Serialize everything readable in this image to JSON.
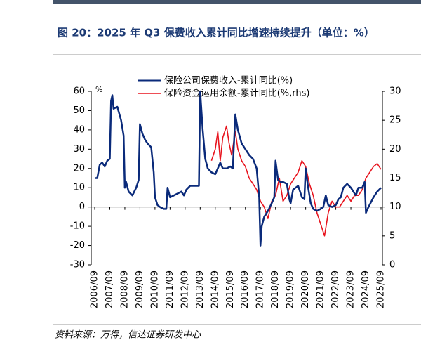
{
  "chart_data": {
    "type": "line",
    "title": "图 20：2025 年 Q3 保费收入累计同比增速持续提升（单位：%）",
    "source": "资料来源：万得，信达证券研发中心",
    "y_unit": "%",
    "xlim": [
      "2006/09",
      "2025/09"
    ],
    "xticks": [
      "2006/09",
      "2007/09",
      "2008/09",
      "2009/09",
      "2010/09",
      "2011/09",
      "2012/09",
      "2013/09",
      "2014/09",
      "2015/09",
      "2016/09",
      "2017/09",
      "2018/09",
      "2019/09",
      "2020/09",
      "2021/09",
      "2022/09",
      "2023/09",
      "2024/09",
      "2025/09"
    ],
    "ylim": [
      -30,
      60
    ],
    "yticks": [
      -30,
      -20,
      -10,
      0,
      10,
      20,
      30,
      40,
      50,
      60
    ],
    "y2lim": [
      0,
      30
    ],
    "y2ticks": [
      0,
      5,
      10,
      15,
      20,
      25,
      30
    ],
    "series": [
      {
        "name": "保险公司保费收入-累计同比(%)",
        "color": "#0a2a7a",
        "x": [
          "2006/09",
          "2006/11",
          "2007/01",
          "2007/03",
          "2007/05",
          "2007/07",
          "2007/09",
          "2007/10",
          "2007/11",
          "2007/12",
          "2008/03",
          "2008/06",
          "2008/08",
          "2008/09",
          "2008/10",
          "2008/12",
          "2009/03",
          "2009/06",
          "2009/08",
          "2009/09",
          "2009/11",
          "2010/01",
          "2010/03",
          "2010/06",
          "2010/08",
          "2010/09",
          "2010/11",
          "2011/01",
          "2011/04",
          "2011/06",
          "2011/07",
          "2011/09",
          "2011/12",
          "2012/03",
          "2012/06",
          "2012/08",
          "2012/10",
          "2013/01",
          "2013/06",
          "2013/08",
          "2013/09",
          "2013/11",
          "2014/01",
          "2014/03",
          "2014/06",
          "2014/09",
          "2014/11",
          "2015/01",
          "2015/03",
          "2015/06",
          "2015/09",
          "2015/11",
          "2016/01",
          "2016/03",
          "2016/06",
          "2016/09",
          "2016/12",
          "2017/03",
          "2017/06",
          "2017/08",
          "2017/09",
          "2017/10",
          "2017/12",
          "2018/03",
          "2018/06",
          "2018/08",
          "2018/09",
          "2018/11",
          "2019/01",
          "2019/03",
          "2019/06",
          "2019/08",
          "2019/09",
          "2019/11",
          "2020/01",
          "2020/03",
          "2020/06",
          "2020/08",
          "2020/09",
          "2020/11",
          "2021/01",
          "2021/03",
          "2021/06",
          "2021/09",
          "2021/11",
          "2022/01",
          "2022/03",
          "2022/06",
          "2022/09",
          "2022/11",
          "2023/01",
          "2023/03",
          "2023/06",
          "2023/09",
          "2023/11",
          "2024/01",
          "2024/03",
          "2024/06",
          "2024/08",
          "2024/09",
          "2024/11",
          "2025/03",
          "2025/06",
          "2025/09"
        ],
        "values": [
          15,
          15,
          22,
          23,
          21,
          24,
          25,
          55,
          58,
          51,
          52,
          45,
          37,
          10,
          13,
          8,
          6,
          10,
          14,
          43,
          38,
          35,
          33,
          31,
          18,
          5,
          1,
          0,
          -1,
          -1,
          10,
          5,
          6,
          7,
          8,
          6,
          9,
          11,
          11,
          11,
          60,
          40,
          25,
          20,
          18,
          17,
          20,
          23,
          20,
          20,
          21,
          20,
          48,
          40,
          33,
          30,
          27,
          25,
          20,
          5,
          -20,
          -10,
          -5,
          -2,
          2,
          5,
          24,
          14,
          13,
          13,
          12,
          4,
          2,
          9,
          10,
          11,
          5,
          4,
          20,
          10,
          2,
          -1,
          -2,
          -1,
          0,
          6,
          1,
          0,
          1,
          4,
          5,
          10,
          12,
          10,
          8,
          6,
          10,
          10,
          13,
          -3,
          0,
          5,
          8,
          10
        ]
      },
      {
        "name": "保险资金运用余额-累计同比(%,rhs)",
        "color": "#e8141e",
        "axis": "y2",
        "x": [
          "2014/06",
          "2014/09",
          "2014/11",
          "2015/01",
          "2015/03",
          "2015/06",
          "2015/08",
          "2015/10",
          "2016/01",
          "2016/03",
          "2016/06",
          "2016/09",
          "2016/12",
          "2017/03",
          "2017/06",
          "2017/09",
          "2017/12",
          "2018/03",
          "2018/06",
          "2018/09",
          "2018/12",
          "2019/03",
          "2019/06",
          "2019/09",
          "2019/12",
          "2020/03",
          "2020/06",
          "2020/09",
          "2020/12",
          "2021/03",
          "2021/06",
          "2021/09",
          "2021/12",
          "2022/03",
          "2022/06",
          "2022/09",
          "2022/12",
          "2023/03",
          "2023/06",
          "2023/09",
          "2023/12",
          "2024/03",
          "2024/06",
          "2024/09",
          "2024/12",
          "2025/03",
          "2025/06",
          "2025/09"
        ],
        "values": [
          18,
          20,
          23,
          18,
          22,
          24,
          21,
          19,
          23,
          20,
          18,
          17,
          15,
          14,
          13,
          11,
          10,
          8,
          11,
          12,
          15,
          11,
          12,
          14,
          15,
          16,
          18,
          17,
          14,
          12,
          9,
          7,
          5,
          9,
          11,
          10,
          10,
          11,
          12,
          11,
          12,
          12,
          13,
          15,
          16,
          17,
          17.5,
          16.5
        ]
      }
    ]
  }
}
